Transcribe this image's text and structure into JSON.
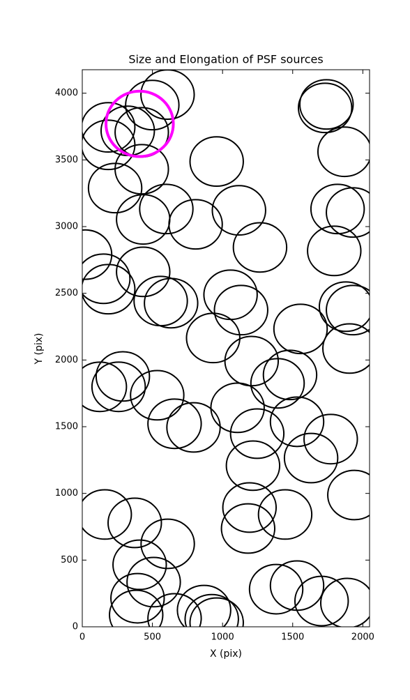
{
  "chart_data": {
    "type": "ellipse",
    "title": "Size and Elongation of PSF sources",
    "x_label": "X (pix)",
    "y_label": "Y (pix)",
    "xlim": [
      0,
      2048
    ],
    "ylim": [
      0,
      4176
    ],
    "xticks": [
      0,
      500,
      1000,
      1500,
      2000
    ],
    "yticks": [
      0,
      500,
      1000,
      1500,
      2000,
      2500,
      3000,
      3500,
      4000
    ],
    "series": [
      {
        "color": "#000000",
        "width": 380,
        "height": 370,
        "x": [
          608,
          499,
          1731,
          1741,
          185,
          324,
          424,
          185,
          1870,
          958,
          424,
          234,
          1117,
          599,
          434,
          808,
          1930,
          1820,
          1267,
          1796,
          20,
          150,
          434,
          185,
          559,
          633,
          1057,
          1132,
          1880,
          1930,
          1556,
          933,
          1207,
          1905,
          1481,
          1392,
          289,
          259,
          125,
          534,
          1107,
          658,
          793,
          1531,
          1247,
          1771,
          1631,
          1217,
          1940,
          160,
          374,
          1192,
          1446,
          1182,
          609,
          409,
          509,
          1382,
          1531,
          394,
          1706,
          1890,
          384,
          658,
          868,
          958,
          923
        ],
        "y": [
          3990,
          3911,
          3890,
          3916,
          3744,
          3718,
          3707,
          3613,
          3561,
          3488,
          3430,
          3289,
          3122,
          3132,
          3054,
          3017,
          3106,
          3132,
          2844,
          2818,
          2790,
          2609,
          2661,
          2531,
          2442,
          2426,
          2489,
          2374,
          2400,
          2374,
          2233,
          2165,
          1992,
          2086,
          1888,
          1825,
          1877,
          1799,
          1799,
          1736,
          1642,
          1522,
          1495,
          1537,
          1448,
          1407,
          1265,
          1208,
          988,
          842,
          779,
          894,
          842,
          737,
          622,
          465,
          335,
          282,
          309,
          214,
          193,
          178,
          89,
          63,
          125,
          31,
          57
        ]
      },
      {
        "color": "#ff00ff",
        "width": 480,
        "height": 490,
        "x": [
          409
        ],
        "y": [
          3770
        ]
      }
    ]
  }
}
